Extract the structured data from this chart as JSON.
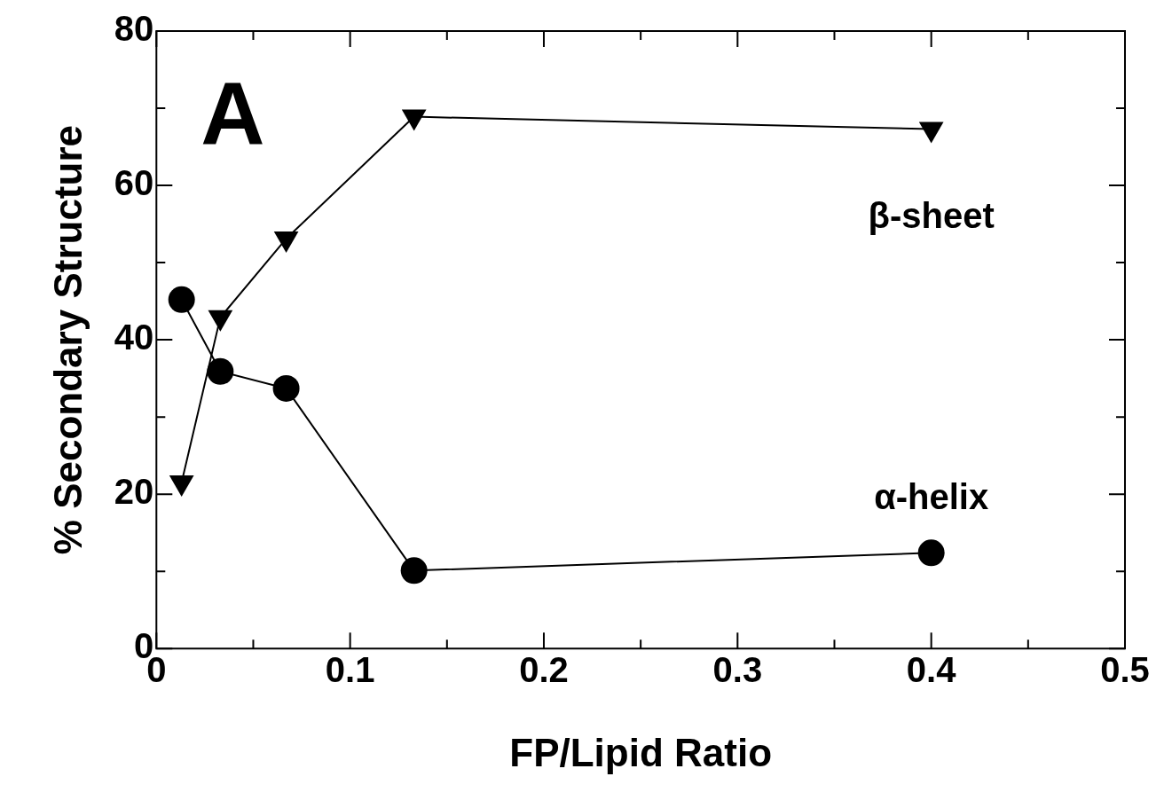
{
  "chart_data": {
    "type": "line",
    "xlabel": "FP/Lipid Ratio",
    "ylabel": "% Secondary Structure",
    "annotations": [
      "A"
    ],
    "xlim": [
      0,
      0.5
    ],
    "ylim": [
      0,
      80
    ],
    "xticks": [
      0,
      {
        "value": 0.05,
        "label": null
      },
      0.1,
      {
        "value": 0.15,
        "label": null
      },
      0.2,
      {
        "value": 0.25,
        "label": null
      },
      0.3,
      {
        "value": 0.35,
        "label": null
      },
      0.4,
      {
        "value": 0.45,
        "label": null
      },
      0.5
    ],
    "yticks": [
      0,
      {
        "value": 10,
        "label": null
      },
      20,
      {
        "value": 30,
        "label": null
      },
      40,
      {
        "value": 50,
        "label": null
      },
      60,
      {
        "value": 70,
        "label": null
      },
      80
    ],
    "grid": false,
    "legend": false,
    "line_style": "solid",
    "series": [
      {
        "name": "β-sheet",
        "color": "#000000",
        "marker": "triangle",
        "x": [
          0.013,
          0.033,
          0.067,
          0.133,
          0.4
        ],
        "values": [
          21.5,
          42.9,
          53.1,
          68.9,
          67.3
        ]
      },
      {
        "name": "α-helix",
        "color": "#000000",
        "marker": "circle",
        "x": [
          0.013,
          0.033,
          0.067,
          0.133,
          0.4
        ],
        "values": [
          45.2,
          35.9,
          33.7,
          10.1,
          12.4
        ]
      }
    ]
  }
}
